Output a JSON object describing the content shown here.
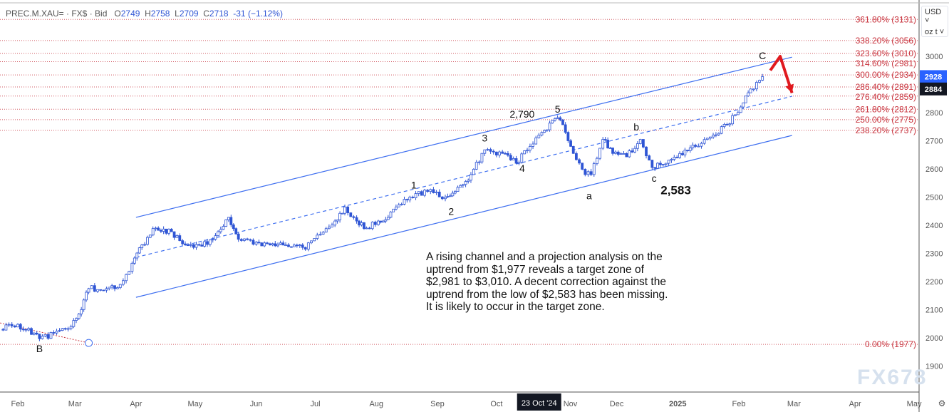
{
  "legend": {
    "symbol": "PREC.M.XAU= · FX$ · Bid",
    "open_label": "O",
    "open": "2749",
    "high_label": "H",
    "high": "2758",
    "low_label": "L",
    "low": "2709",
    "close_label": "C",
    "close": "2718",
    "change": "-31 (−1.12%)"
  },
  "unit_selector": {
    "currency": "USD",
    "unit": "oz t"
  },
  "watermark": "FX678",
  "note": "A rising channel and a projection analysis on the\nuptrend from $1,977 reveals a target zone of\n$2,981 to $3,010.  A decent correction against the\nuptrend from the low of $2,583 has been missing.\nIt is likely to occur in the target zone.",
  "colors": {
    "up_fill": "#ffffff",
    "candle": "#2f55d4",
    "fib": "#c8323c",
    "channel": "#3d6ef0",
    "price_tag": "#2962ff",
    "crosshair_tag": "#131722"
  },
  "chart_data": {
    "type": "candlestick",
    "title": "",
    "ylim": [
      1850,
      3170
    ],
    "xlim": [
      "2024-01-23",
      "2025-05-12"
    ],
    "y_ticks": [
      1900,
      2000,
      2100,
      2200,
      2300,
      2400,
      2500,
      2600,
      2700,
      2800,
      2900,
      3000
    ],
    "x_ticks": [
      {
        "date": "2024-02-01",
        "label": "Feb"
      },
      {
        "date": "2024-03-01",
        "label": "Mar"
      },
      {
        "date": "2024-04-01",
        "label": "Apr"
      },
      {
        "date": "2024-05-01",
        "label": "May"
      },
      {
        "date": "2024-06-01",
        "label": "Jun"
      },
      {
        "date": "2024-07-01",
        "label": "Jul"
      },
      {
        "date": "2024-08-01",
        "label": "Aug"
      },
      {
        "date": "2024-09-01",
        "label": "Sep"
      },
      {
        "date": "2024-10-01",
        "label": "Oct"
      },
      {
        "date": "2024-11-01",
        "label": "Nov"
      },
      {
        "date": "2024-12-01",
        "label": "Dec"
      },
      {
        "date": "2025-01-01",
        "label": "2025"
      },
      {
        "date": "2025-02-01",
        "label": "Feb"
      },
      {
        "date": "2025-03-01",
        "label": "Mar"
      },
      {
        "date": "2025-04-01",
        "label": "Apr"
      },
      {
        "date": "2025-05-01",
        "label": "May"
      }
    ],
    "crosshair_date_label": "23 Oct '24",
    "price_tags": [
      {
        "value": "2928"
      },
      {
        "value": "2884"
      }
    ],
    "close_path": [
      [
        "2024-01-23",
        2030
      ],
      [
        "2024-02-01",
        2048
      ],
      [
        "2024-02-12",
        1997
      ],
      [
        "2024-02-28",
        2040
      ],
      [
        "2024-03-03",
        2085
      ],
      [
        "2024-03-08",
        2175
      ],
      [
        "2024-03-17",
        2175
      ],
      [
        "2024-03-24",
        2190
      ],
      [
        "2024-03-30",
        2265
      ],
      [
        "2024-04-04",
        2330
      ],
      [
        "2024-04-11",
        2390
      ],
      [
        "2024-04-19",
        2377
      ],
      [
        "2024-04-26",
        2330
      ],
      [
        "2024-05-03",
        2330
      ],
      [
        "2024-05-10",
        2350
      ],
      [
        "2024-05-18",
        2428
      ],
      [
        "2024-05-23",
        2350
      ],
      [
        "2024-06-01",
        2340
      ],
      [
        "2024-06-08",
        2330
      ],
      [
        "2024-06-16",
        2330
      ],
      [
        "2024-06-26",
        2315
      ],
      [
        "2024-07-02",
        2365
      ],
      [
        "2024-07-11",
        2415
      ],
      [
        "2024-07-16",
        2465
      ],
      [
        "2024-07-22",
        2415
      ],
      [
        "2024-07-27",
        2390
      ],
      [
        "2024-08-02",
        2415
      ],
      [
        "2024-08-07",
        2428
      ],
      [
        "2024-08-11",
        2465
      ],
      [
        "2024-08-18",
        2500
      ],
      [
        "2024-08-27",
        2520
      ],
      [
        "2024-09-05",
        2500
      ],
      [
        "2024-09-10",
        2520
      ],
      [
        "2024-09-18",
        2580
      ],
      [
        "2024-09-25",
        2668
      ],
      [
        "2024-10-04",
        2655
      ],
      [
        "2024-10-11",
        2620
      ],
      [
        "2024-10-18",
        2680
      ],
      [
        "2024-10-24",
        2730
      ],
      [
        "2024-11-01",
        2782
      ],
      [
        "2024-11-05",
        2730
      ],
      [
        "2024-11-09",
        2655
      ],
      [
        "2024-11-15",
        2580
      ],
      [
        "2024-11-18",
        2580
      ],
      [
        "2024-11-24",
        2705
      ],
      [
        "2024-11-29",
        2655
      ],
      [
        "2024-12-06",
        2643
      ],
      [
        "2024-12-13",
        2705
      ],
      [
        "2024-12-19",
        2605
      ],
      [
        "2024-12-26",
        2620
      ],
      [
        "2025-01-02",
        2655
      ],
      [
        "2025-01-10",
        2680
      ],
      [
        "2025-01-19",
        2720
      ],
      [
        "2025-01-26",
        2757
      ],
      [
        "2025-02-02",
        2820
      ],
      [
        "2025-02-07",
        2884
      ],
      [
        "2025-02-13",
        2928
      ]
    ],
    "fib_levels": [
      {
        "label": "361.80% (3131)",
        "price": 3131
      },
      {
        "label": "338.20% (3056)",
        "price": 3056
      },
      {
        "label": "323.60% (3010)",
        "price": 3010
      },
      {
        "label": "314.60% (2981)",
        "price": 2981
      },
      {
        "label": "300.00% (2934)",
        "price": 2934
      },
      {
        "label": "286.40% (2891)",
        "price": 2891
      },
      {
        "label": "276.40% (2859)",
        "price": 2859
      },
      {
        "label": "261.80% (2812)",
        "price": 2812
      },
      {
        "label": "250.00% (2775)",
        "price": 2775
      },
      {
        "label": "238.20% (2737)",
        "price": 2737
      },
      {
        "label": "0.00% (1977)",
        "price": 1977
      }
    ],
    "channel": {
      "upper": [
        [
          "2024-04-01",
          2428
        ],
        [
          "2025-02-28",
          2997
        ]
      ],
      "middle": [
        [
          "2024-04-01",
          2286
        ],
        [
          "2025-02-28",
          2858
        ]
      ],
      "lower": [
        [
          "2024-04-01",
          2144
        ],
        [
          "2025-02-28",
          2719
        ]
      ]
    },
    "trend_line": [
      [
        "2024-01-23",
        2053
      ],
      [
        "2024-03-08",
        1982
      ]
    ],
    "wave_labels": [
      {
        "text": "B",
        "date": "2024-02-12",
        "price": 1950
      },
      {
        "text": "1",
        "date": "2024-08-20",
        "price": 2530
      },
      {
        "text": "2",
        "date": "2024-09-08",
        "price": 2437
      },
      {
        "text": "3",
        "date": "2024-09-25",
        "price": 2697
      },
      {
        "text": "4",
        "date": "2024-10-14",
        "price": 2590
      },
      {
        "text": "5",
        "date": "2024-11-01",
        "price": 2800
      },
      {
        "text": "2,790",
        "date": "2024-10-14",
        "price": 2782
      },
      {
        "text": "a",
        "date": "2024-11-17",
        "price": 2492
      },
      {
        "text": "b",
        "date": "2024-12-11",
        "price": 2737
      },
      {
        "text": "c",
        "date": "2024-12-20",
        "price": 2554
      },
      {
        "text": "2,583",
        "date": "2024-12-31",
        "price": 2510
      },
      {
        "text": "C",
        "date": "2025-02-13",
        "price": 2990
      }
    ],
    "projection_arrow": [
      [
        "2025-02-17",
        2950
      ],
      [
        "2025-02-22",
        3000
      ],
      [
        "2025-02-28",
        2870
      ]
    ]
  }
}
